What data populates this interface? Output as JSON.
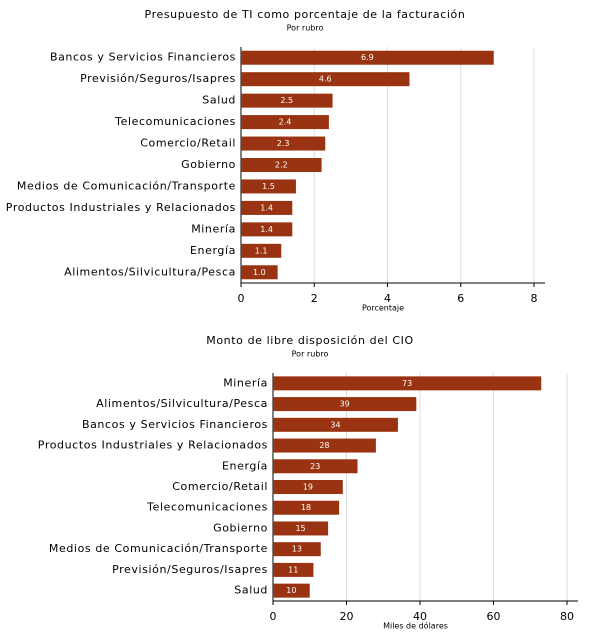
{
  "chart_data": [
    {
      "type": "bar",
      "orientation": "horizontal",
      "title": "Presupuesto de TI como porcentaje de la facturación",
      "subtitle": "Por rubro",
      "x_label": "Porcentaje",
      "categories": [
        "Bancos y Servicios Financieros",
        "Previsión/Seguros/Isapres",
        "Salud",
        "Telecomunicaciones",
        "Comercio/Retail",
        "Gobierno",
        "Medios de Comunicación/Transporte",
        "Productos Industriales y Relacionados",
        "Minería",
        "Energía",
        "Alimentos/Silvicultura/Pesca"
      ],
      "values": [
        6.9,
        4.6,
        2.5,
        2.4,
        2.3,
        2.2,
        1.5,
        1.4,
        1.4,
        1.1,
        1.0
      ],
      "value_labels": [
        "6.9",
        "4.6",
        "2.5",
        "2.4",
        "2.3",
        "2.2",
        "1.5",
        "1.4",
        "1.4",
        "1.1",
        "1.0"
      ],
      "color": "#993311",
      "xlim": [
        0,
        8.3
      ],
      "xticks": [
        0,
        2,
        4,
        6,
        8
      ],
      "grid": true
    },
    {
      "type": "bar",
      "orientation": "horizontal",
      "title": "Monto de libre disposición del CIO",
      "subtitle": "Por rubro",
      "x_label": "Miles de dólares",
      "categories": [
        "Minería",
        "Alimentos/Silvicultura/Pesca",
        "Bancos y Servicios Financieros",
        "Productos Industriales y Relacionados",
        "Energía",
        "Comercio/Retail",
        "Telecomunicaciones",
        "Gobierno",
        "Medios de Comunicación/Transporte",
        "Previsión/Seguros/Isapres",
        "Salud"
      ],
      "values": [
        73,
        39,
        34,
        28,
        23,
        19,
        18,
        15,
        13,
        11,
        10
      ],
      "color": "#993311",
      "xlim": [
        0,
        83
      ],
      "xticks": [
        0,
        20,
        40,
        60,
        80
      ],
      "grid": true
    }
  ]
}
